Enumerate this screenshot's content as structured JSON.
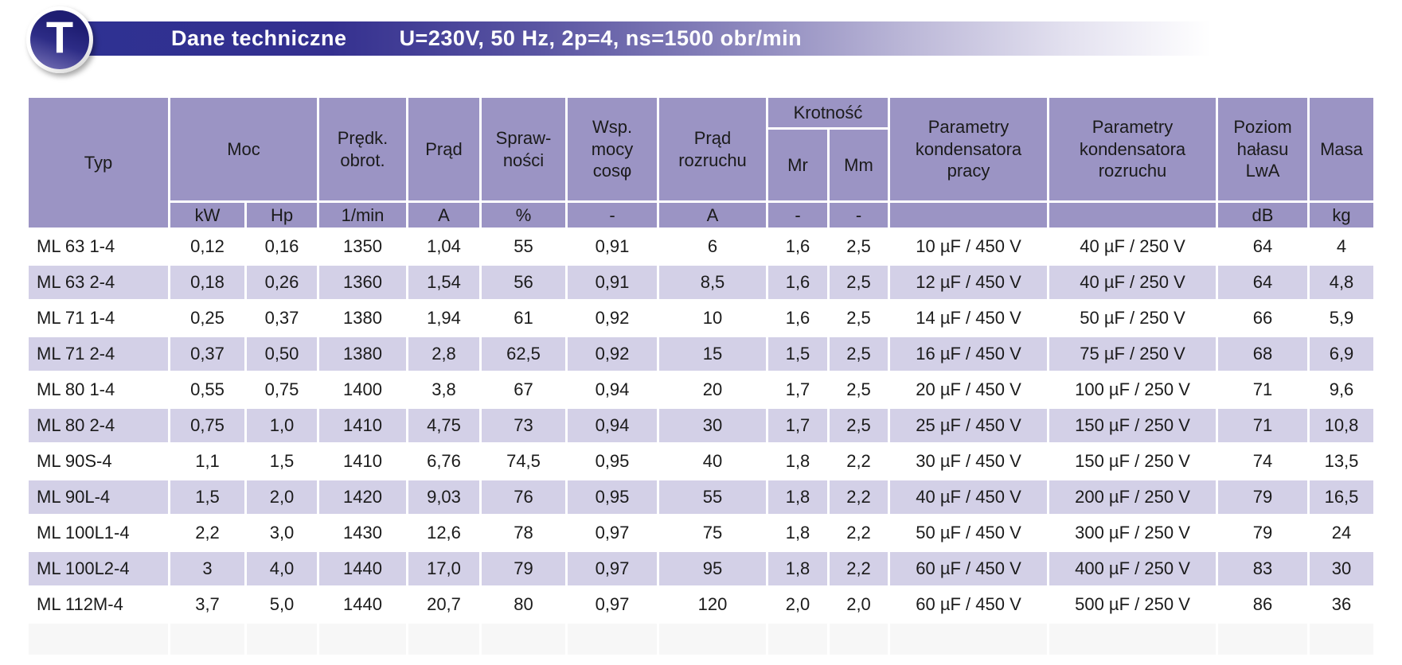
{
  "banner": {
    "badge_letter": "T",
    "title": "Dane techniczne",
    "conditions": "U=230V, 50 Hz, 2p=4, ns=1500 obr/min"
  },
  "colors": {
    "header_purple": "#9b94c4",
    "row_alt_lavender": "#d3d0e7",
    "banner_dark_blue": "#2e3192"
  },
  "table": {
    "headers": {
      "typ": "Typ",
      "moc": "Moc",
      "predkosc_obrotowa": "Prędk.\nobrot.",
      "prad": "Prąd",
      "sprawnosc": "Spraw-\nności",
      "wsp_mocy": "Wsp.\nmocy\ncosφ",
      "prad_rozruchu": "Prąd\nrozruchu",
      "krotnosc": "Krotność",
      "mr": "Mr",
      "mm": "Mm",
      "kondensator_pracy": "Parametry\nkondensatora\npracy",
      "kondensator_rozruchu": "Parametry\nkondensatora\nrozruchu",
      "poziom_halasu": "Poziom\nhałasu\nLwA",
      "masa": "Masa"
    },
    "units": [
      "kW",
      "Hp",
      "1/min",
      "A",
      "%",
      "-",
      "A",
      "-",
      "-",
      "",
      "",
      "dB",
      "kg"
    ],
    "rows": [
      [
        "ML 63 1-4",
        "0,12",
        "0,16",
        "1350",
        "1,04",
        "55",
        "0,91",
        "6",
        "1,6",
        "2,5",
        "10 µF / 450 V",
        "40 µF / 250 V",
        "64",
        "4"
      ],
      [
        "ML 63 2-4",
        "0,18",
        "0,26",
        "1360",
        "1,54",
        "56",
        "0,91",
        "8,5",
        "1,6",
        "2,5",
        "12 µF / 450 V",
        "40 µF / 250 V",
        "64",
        "4,8"
      ],
      [
        "ML 71 1-4",
        "0,25",
        "0,37",
        "1380",
        "1,94",
        "61",
        "0,92",
        "10",
        "1,6",
        "2,5",
        "14 µF / 450 V",
        "50 µF / 250 V",
        "66",
        "5,9"
      ],
      [
        "ML 71 2-4",
        "0,37",
        "0,50",
        "1380",
        "2,8",
        "62,5",
        "0,92",
        "15",
        "1,5",
        "2,5",
        "16 µF / 450 V",
        "75 µF / 250 V",
        "68",
        "6,9"
      ],
      [
        "ML 80 1-4",
        "0,55",
        "0,75",
        "1400",
        "3,8",
        "67",
        "0,94",
        "20",
        "1,7",
        "2,5",
        "20 µF / 450 V",
        "100 µF / 250 V",
        "71",
        "9,6"
      ],
      [
        "ML 80 2-4",
        "0,75",
        "1,0",
        "1410",
        "4,75",
        "73",
        "0,94",
        "30",
        "1,7",
        "2,5",
        "25 µF / 450 V",
        "150 µF / 250 V",
        "71",
        "10,8"
      ],
      [
        "ML 90S-4",
        "1,1",
        "1,5",
        "1410",
        "6,76",
        "74,5",
        "0,95",
        "40",
        "1,8",
        "2,2",
        "30 µF / 450 V",
        "150 µF / 250 V",
        "74",
        "13,5"
      ],
      [
        "ML 90L-4",
        "1,5",
        "2,0",
        "1420",
        "9,03",
        "76",
        "0,95",
        "55",
        "1,8",
        "2,2",
        "40 µF / 450 V",
        "200 µF / 250 V",
        "79",
        "16,5"
      ],
      [
        "ML 100L1-4",
        "2,2",
        "3,0",
        "1430",
        "12,6",
        "78",
        "0,97",
        "75",
        "1,8",
        "2,2",
        "50 µF / 450 V",
        "300 µF / 250 V",
        "79",
        "24"
      ],
      [
        "ML 100L2-4",
        "3",
        "4,0",
        "1440",
        "17,0",
        "79",
        "0,97",
        "95",
        "1,8",
        "2,2",
        "60 µF / 450 V",
        "400 µF / 250 V",
        "83",
        "30"
      ],
      [
        "ML 112M-4",
        "3,7",
        "5,0",
        "1440",
        "20,7",
        "80",
        "0,97",
        "120",
        "2,0",
        "2,0",
        "60 µF / 450 V",
        "500 µF / 250 V",
        "86",
        "36"
      ]
    ]
  }
}
